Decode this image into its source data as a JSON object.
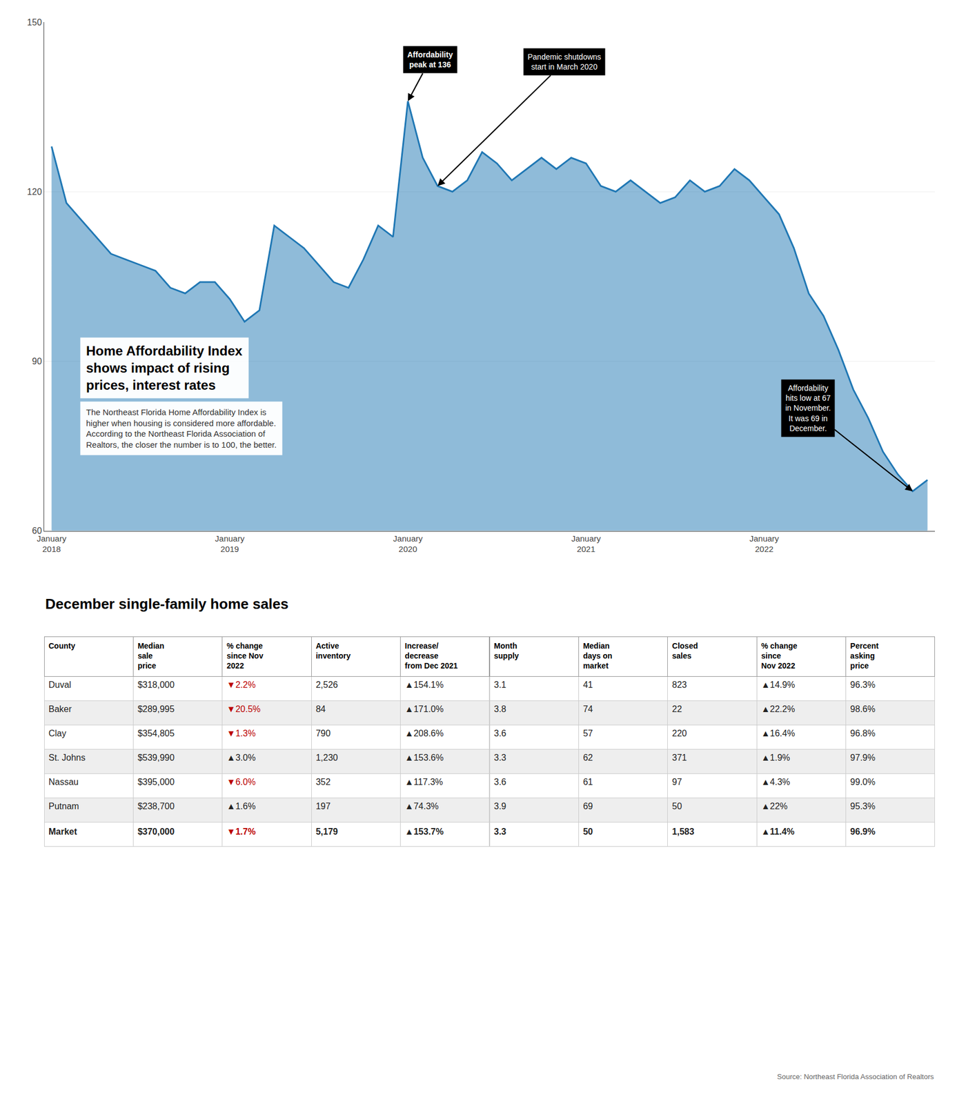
{
  "chart_data": [
    {
      "type": "area",
      "title": "Home Affordability Index\nshows impact of rising\nprices, interest rates",
      "subtitle": "The Northeast Florida Home Affordability Index is\nhigher when housing is considered more affordable.\nAccording to the Northeast Florida Association of\nRealtors, the closer the number is to 100, the better.",
      "categories": [
        "January\n2018",
        null,
        null,
        null,
        null,
        null,
        null,
        null,
        null,
        null,
        null,
        null,
        "January\n2019",
        null,
        null,
        null,
        null,
        null,
        null,
        null,
        null,
        null,
        null,
        null,
        "January\n2020",
        null,
        null,
        null,
        null,
        null,
        null,
        null,
        null,
        null,
        null,
        null,
        "January\n2021",
        null,
        null,
        null,
        null,
        null,
        null,
        null,
        null,
        null,
        null,
        null,
        "January\n2022",
        null,
        null,
        null,
        null,
        null,
        null,
        null,
        null,
        null,
        null,
        null
      ],
      "values": [
        128,
        118,
        115,
        112,
        109,
        108,
        107,
        106,
        103,
        102,
        104,
        104,
        101,
        97,
        99,
        114,
        112,
        110,
        107,
        104,
        103,
        108,
        114,
        112,
        136,
        126,
        121,
        120,
        122,
        127,
        125,
        122,
        124,
        126,
        124,
        126,
        125,
        121,
        120,
        122,
        120,
        118,
        119,
        122,
        120,
        121,
        124,
        122,
        119,
        116,
        110,
        102,
        98,
        92,
        85,
        80,
        74,
        70,
        67,
        69
      ],
      "ylim": [
        60,
        150
      ],
      "yticks": [
        60,
        90,
        120,
        150
      ],
      "grid": true,
      "annotations": [
        {
          "text": "Affordability\npeak at 136",
          "x": 24,
          "y": 136
        },
        {
          "text": "Pandemic shutdowns\nstart in March 2020",
          "x": 26,
          "y": 121
        },
        {
          "text": "Affordability\nhits low at 67\nin November.\nIt was 69 in\nDecember.",
          "x": 58,
          "y": 67
        }
      ]
    },
    {
      "type": "table",
      "title": "December single-family home sales",
      "columns": [
        "County",
        "Median\nsale\nprice",
        "% change\nsince Nov\n2022",
        "Active\ninventory",
        "Increase/\ndecrease\nfrom Dec 2021",
        "Month\nsupply",
        "Median\ndays on\nmarket",
        "Closed\nsales",
        "% change\nsince\nNov 2022",
        "Percent\nasking\nprice"
      ],
      "rows": [
        [
          "Duval",
          "$318,000",
          "▼2.2%",
          "2,526",
          "▲154.1%",
          "3.1",
          "41",
          "823",
          "▲14.9%",
          "96.3%"
        ],
        [
          "Baker",
          "$289,995",
          "▼20.5%",
          "84",
          "▲171.0%",
          "3.8",
          "74",
          "22",
          "▲22.2%",
          "98.6%"
        ],
        [
          "Clay",
          "$354,805",
          "▼1.3%",
          "790",
          "▲208.6%",
          "3.6",
          "57",
          "220",
          "▲16.4%",
          "96.8%"
        ],
        [
          "St. Johns",
          "$539,990",
          "▲3.0%",
          "1,230",
          "▲153.6%",
          "3.3",
          "62",
          "371",
          "▲1.9%",
          "97.9%"
        ],
        [
          "Nassau",
          "$395,000",
          "▼6.0%",
          "352",
          "▲117.3%",
          "3.6",
          "61",
          "97",
          "▲4.3%",
          "99.0%"
        ],
        [
          "Putnam",
          "$238,700",
          "▲1.6%",
          "197",
          "▲74.3%",
          "3.9",
          "69",
          "50",
          "▲22%",
          "95.3%"
        ],
        [
          "Market",
          "$370,000",
          "▼1.7%",
          "5,179",
          "▲153.7%",
          "3.3",
          "50",
          "1,583",
          "▲11.4%",
          "96.9%"
        ]
      ],
      "color": "#bb0000",
      "source": "Source: Northeast Florida Association of Realtors"
    }
  ]
}
